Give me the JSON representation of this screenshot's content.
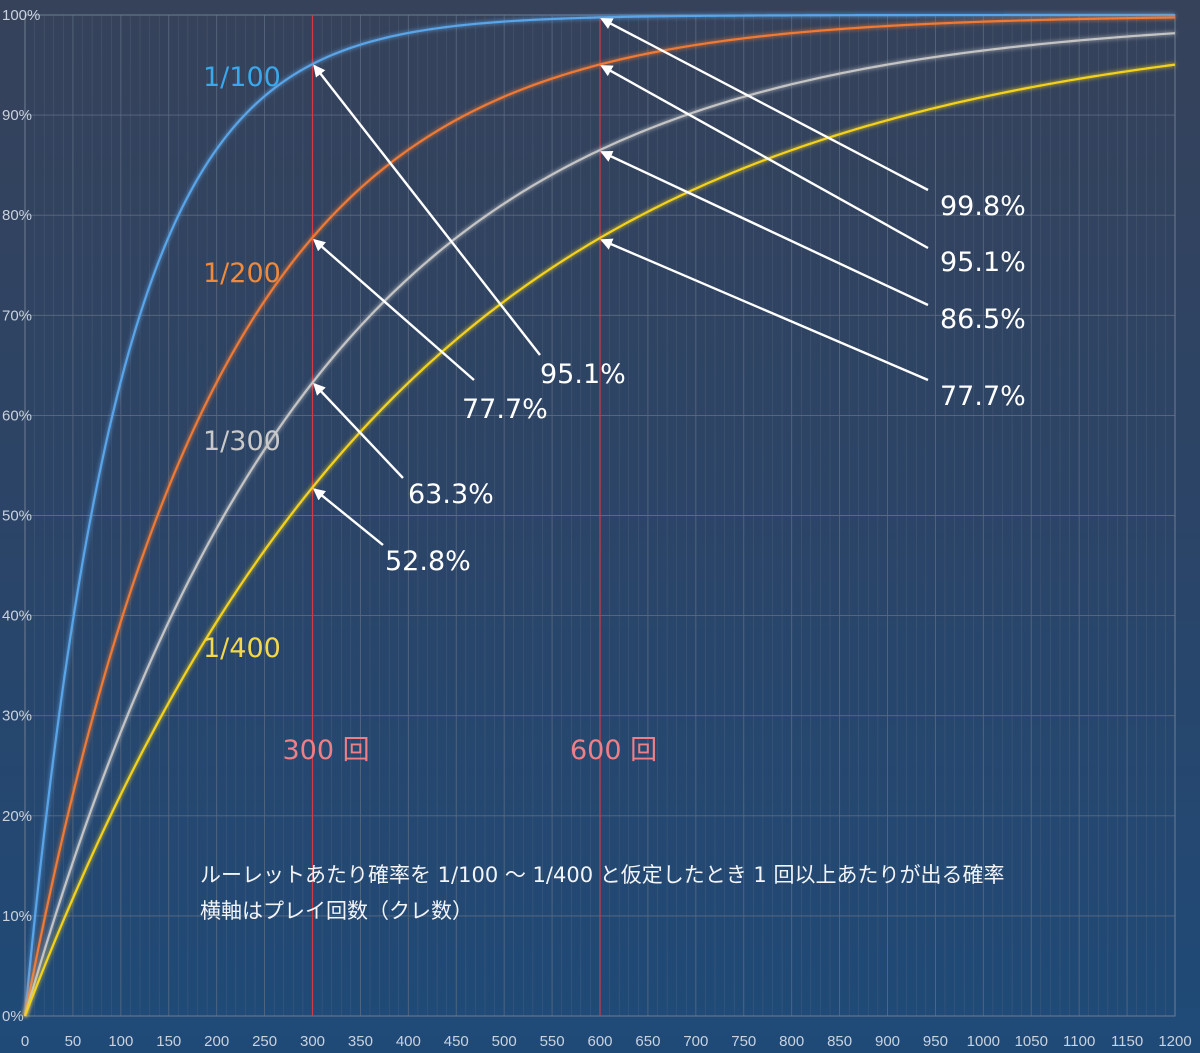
{
  "chart_data": {
    "type": "line",
    "title": "",
    "xlabel": "",
    "ylabel": "",
    "xlim": [
      0,
      1200
    ],
    "ylim": [
      0,
      100
    ],
    "x_ticks": [
      0,
      50,
      100,
      150,
      200,
      250,
      300,
      350,
      400,
      450,
      500,
      550,
      600,
      650,
      700,
      750,
      800,
      850,
      900,
      950,
      1000,
      1050,
      1100,
      1150,
      1200
    ],
    "y_ticks": [
      "0%",
      "10%",
      "20%",
      "30%",
      "40%",
      "50%",
      "60%",
      "70%",
      "80%",
      "90%",
      "100%"
    ],
    "grid": true,
    "series": [
      {
        "name": "1/100",
        "denominator": 100,
        "color": "#5aa4e8",
        "label_color": "#3aa8ec"
      },
      {
        "name": "1/200",
        "denominator": 200,
        "color": "#ee7a35",
        "label_color": "#f08a3a"
      },
      {
        "name": "1/300",
        "denominator": 300,
        "color": "#c4c4c4",
        "label_color": "#c9c9c9"
      },
      {
        "name": "1/400",
        "denominator": 400,
        "color": "#f4d21e",
        "label_color": "#f4d84a"
      }
    ],
    "markers": [
      {
        "x": 300,
        "label": "300 回"
      },
      {
        "x": 600,
        "label": "600 回"
      }
    ],
    "annotations": [
      {
        "x": 300,
        "y": 95.1,
        "text": "95.1%"
      },
      {
        "x": 300,
        "y": 77.7,
        "text": "77.7%"
      },
      {
        "x": 300,
        "y": 63.3,
        "text": "63.3%"
      },
      {
        "x": 300,
        "y": 52.8,
        "text": "52.8%"
      },
      {
        "x": 600,
        "y": 99.8,
        "text": "99.8%"
      },
      {
        "x": 600,
        "y": 95.1,
        "text": "95.1%"
      },
      {
        "x": 600,
        "y": 86.5,
        "text": "86.5%"
      },
      {
        "x": 600,
        "y": 77.7,
        "text": "77.7%"
      }
    ],
    "caption": [
      "ルーレットあたり確率を 1/100 〜 1/400 と仮定したとき 1 回以上あたりが出る確率",
      "横軸はプレイ回数（クレ数）"
    ],
    "colors": {
      "grid": "#5b6a80",
      "marker_line": "#d23b45",
      "axis_text": "#c9d2de",
      "arrow": "#ffffff"
    }
  }
}
